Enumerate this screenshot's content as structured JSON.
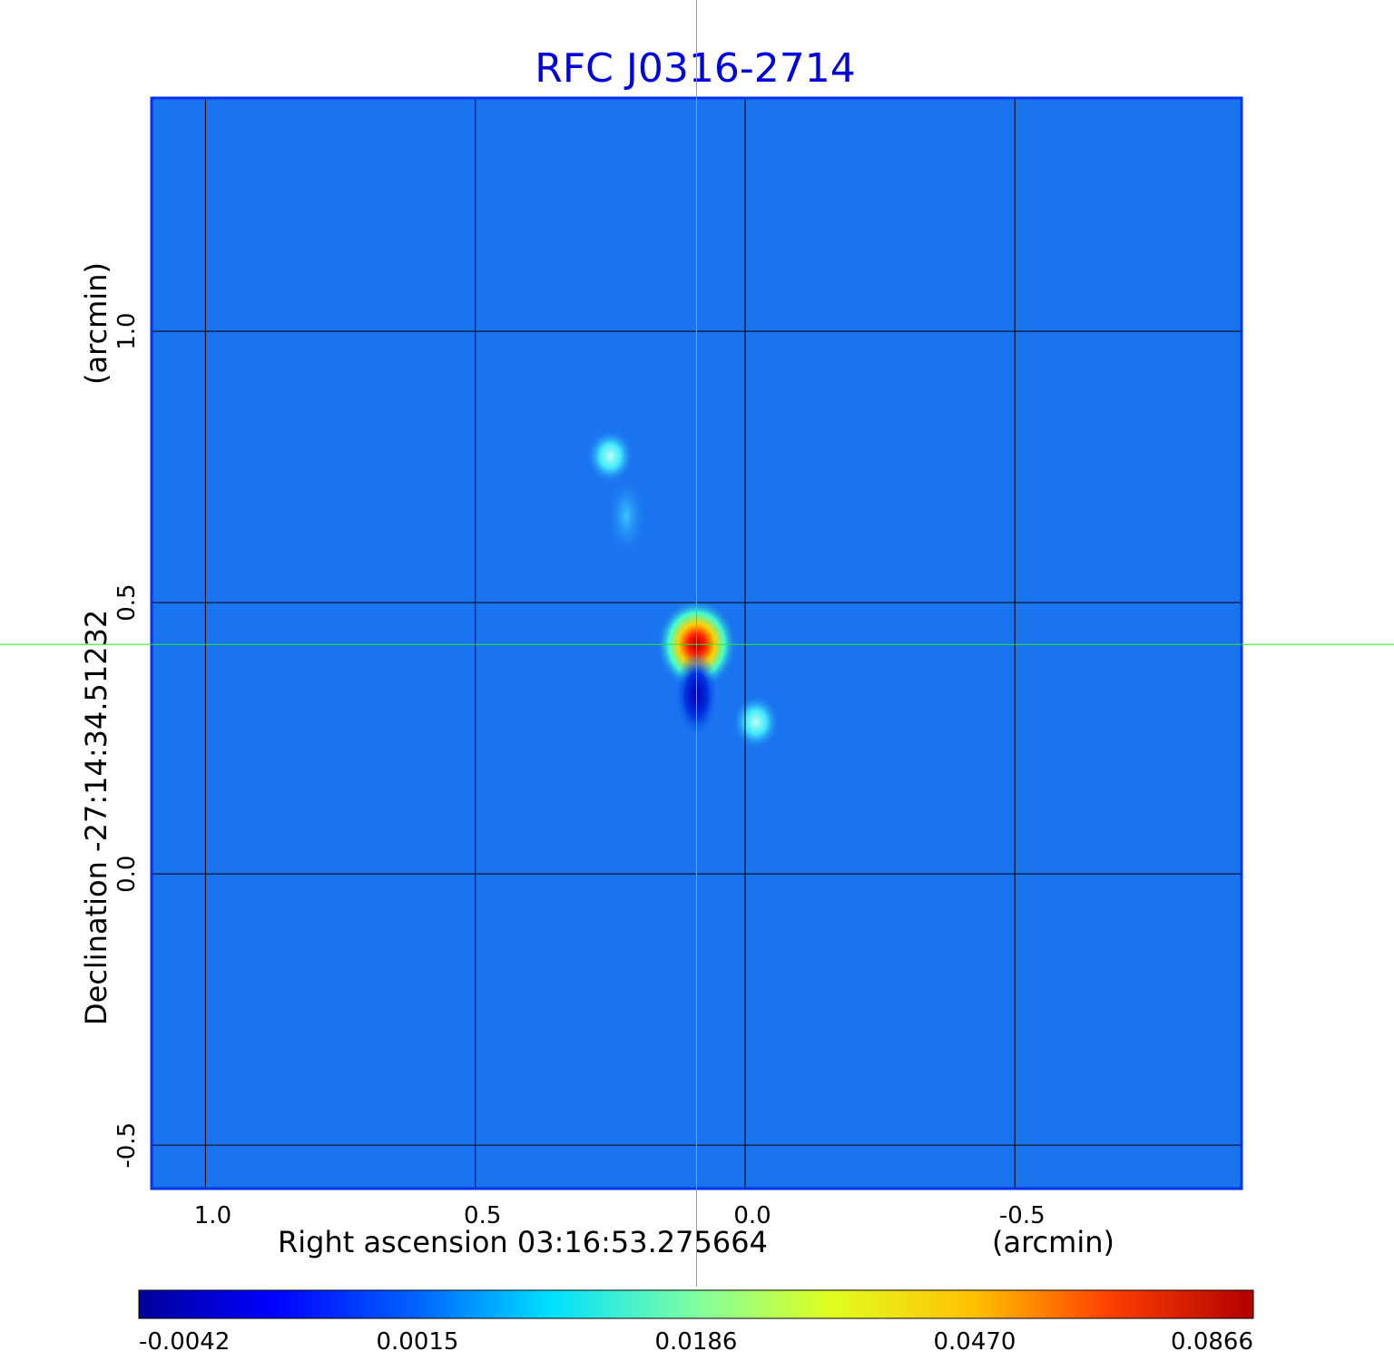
{
  "chart_data": {
    "type": "heatmap",
    "title": "RFC J0316-2714",
    "xlabel": "Right ascension  03:16:53.275664",
    "xunit": "(arcmin)",
    "ylabel": "Declination  -27:14:34.51232",
    "yunit": "(arcmin)",
    "xlim": [
      1.1,
      -0.92
    ],
    "ylim": [
      -0.58,
      1.43
    ],
    "x_ticks": [
      1.0,
      0.5,
      0.0,
      -0.5
    ],
    "x_tick_labels": [
      "1.0",
      "0.5",
      "0.0",
      "-0.5"
    ],
    "y_ticks": [
      1.0,
      0.5,
      0.0,
      -0.5
    ],
    "y_tick_labels": [
      "1.0",
      "0.5",
      "0.0",
      "-0.5"
    ],
    "grid": true,
    "crosshair": {
      "x": 0.09,
      "y": 0.423
    },
    "colorscale": "jet",
    "colorbar_ticks": [
      "-0.0042",
      "0.0015",
      "0.0186",
      "0.0470",
      "0.0866"
    ],
    "peak": {
      "x": 0.09,
      "y": 0.423,
      "value": 0.0866
    },
    "features": [
      {
        "x": 0.09,
        "y": 0.423,
        "value": 0.0866
      },
      {
        "x": 0.25,
        "y": 0.77,
        "value": 0.016
      },
      {
        "x": -0.02,
        "y": 0.28,
        "value": 0.015
      },
      {
        "x": 0.22,
        "y": 0.66,
        "value": 0.01
      },
      {
        "x": 0.09,
        "y": 0.33,
        "value": -0.0042
      }
    ]
  }
}
